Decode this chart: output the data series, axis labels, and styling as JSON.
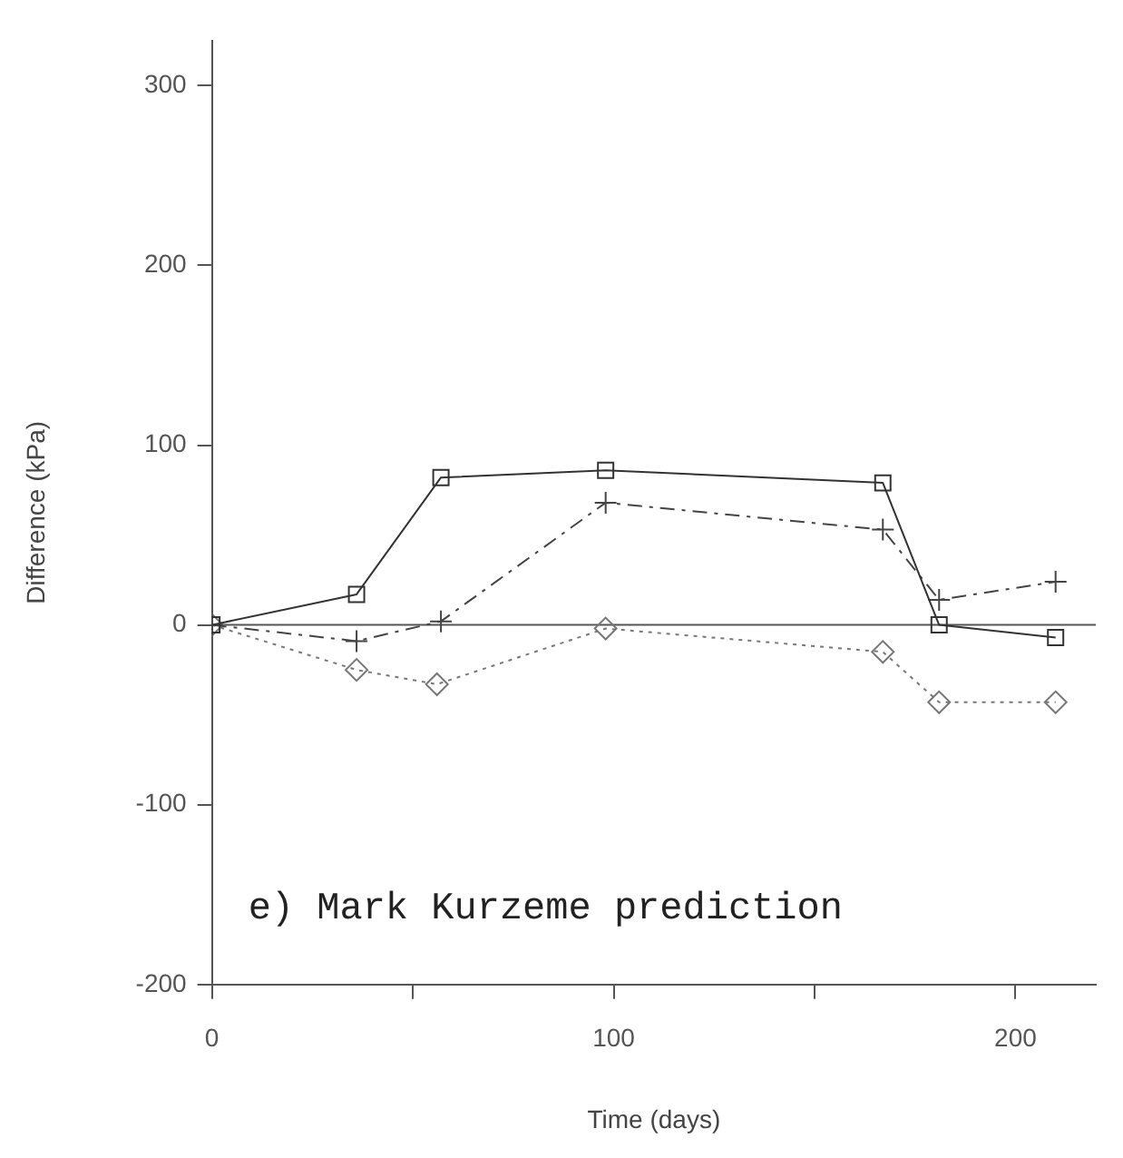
{
  "chart_data": {
    "type": "line",
    "xlabel": "Time (days)",
    "ylabel": "Difference (kPa)",
    "xlim": [
      0,
      220
    ],
    "xticks": [
      0,
      {
        "value": 50,
        "label": null
      },
      100,
      {
        "value": 150,
        "label": null
      },
      200
    ],
    "ylim": [
      -200,
      325
    ],
    "yticks": [
      -200,
      -100,
      0,
      100,
      200,
      300
    ],
    "grid": false,
    "legend": false,
    "ref_lines": [
      {
        "axis": "y",
        "value": 0,
        "color": "#555555",
        "line_style": "solid"
      }
    ],
    "annotations": [
      "e) Mark Kurzeme prediction"
    ],
    "series": [
      {
        "color": "#333333",
        "marker": "square",
        "line_style": "solid",
        "x": [
          0,
          36,
          57,
          98,
          167,
          181,
          210
        ],
        "values": [
          0,
          17,
          82,
          86,
          79,
          0,
          -7
        ]
      },
      {
        "color": "#444444",
        "marker": "cross",
        "line_style": "dashed",
        "x": [
          0,
          36,
          57,
          98,
          167,
          181,
          210
        ],
        "values": [
          0,
          -9,
          2,
          68,
          53,
          14,
          24
        ]
      },
      {
        "color": "#777777",
        "marker": "diamond",
        "line_style": "dotted",
        "x": [
          0,
          36,
          56,
          98,
          167,
          181,
          210
        ],
        "values": [
          0,
          -25,
          -33,
          -2,
          -15,
          -43,
          -43
        ]
      }
    ]
  }
}
